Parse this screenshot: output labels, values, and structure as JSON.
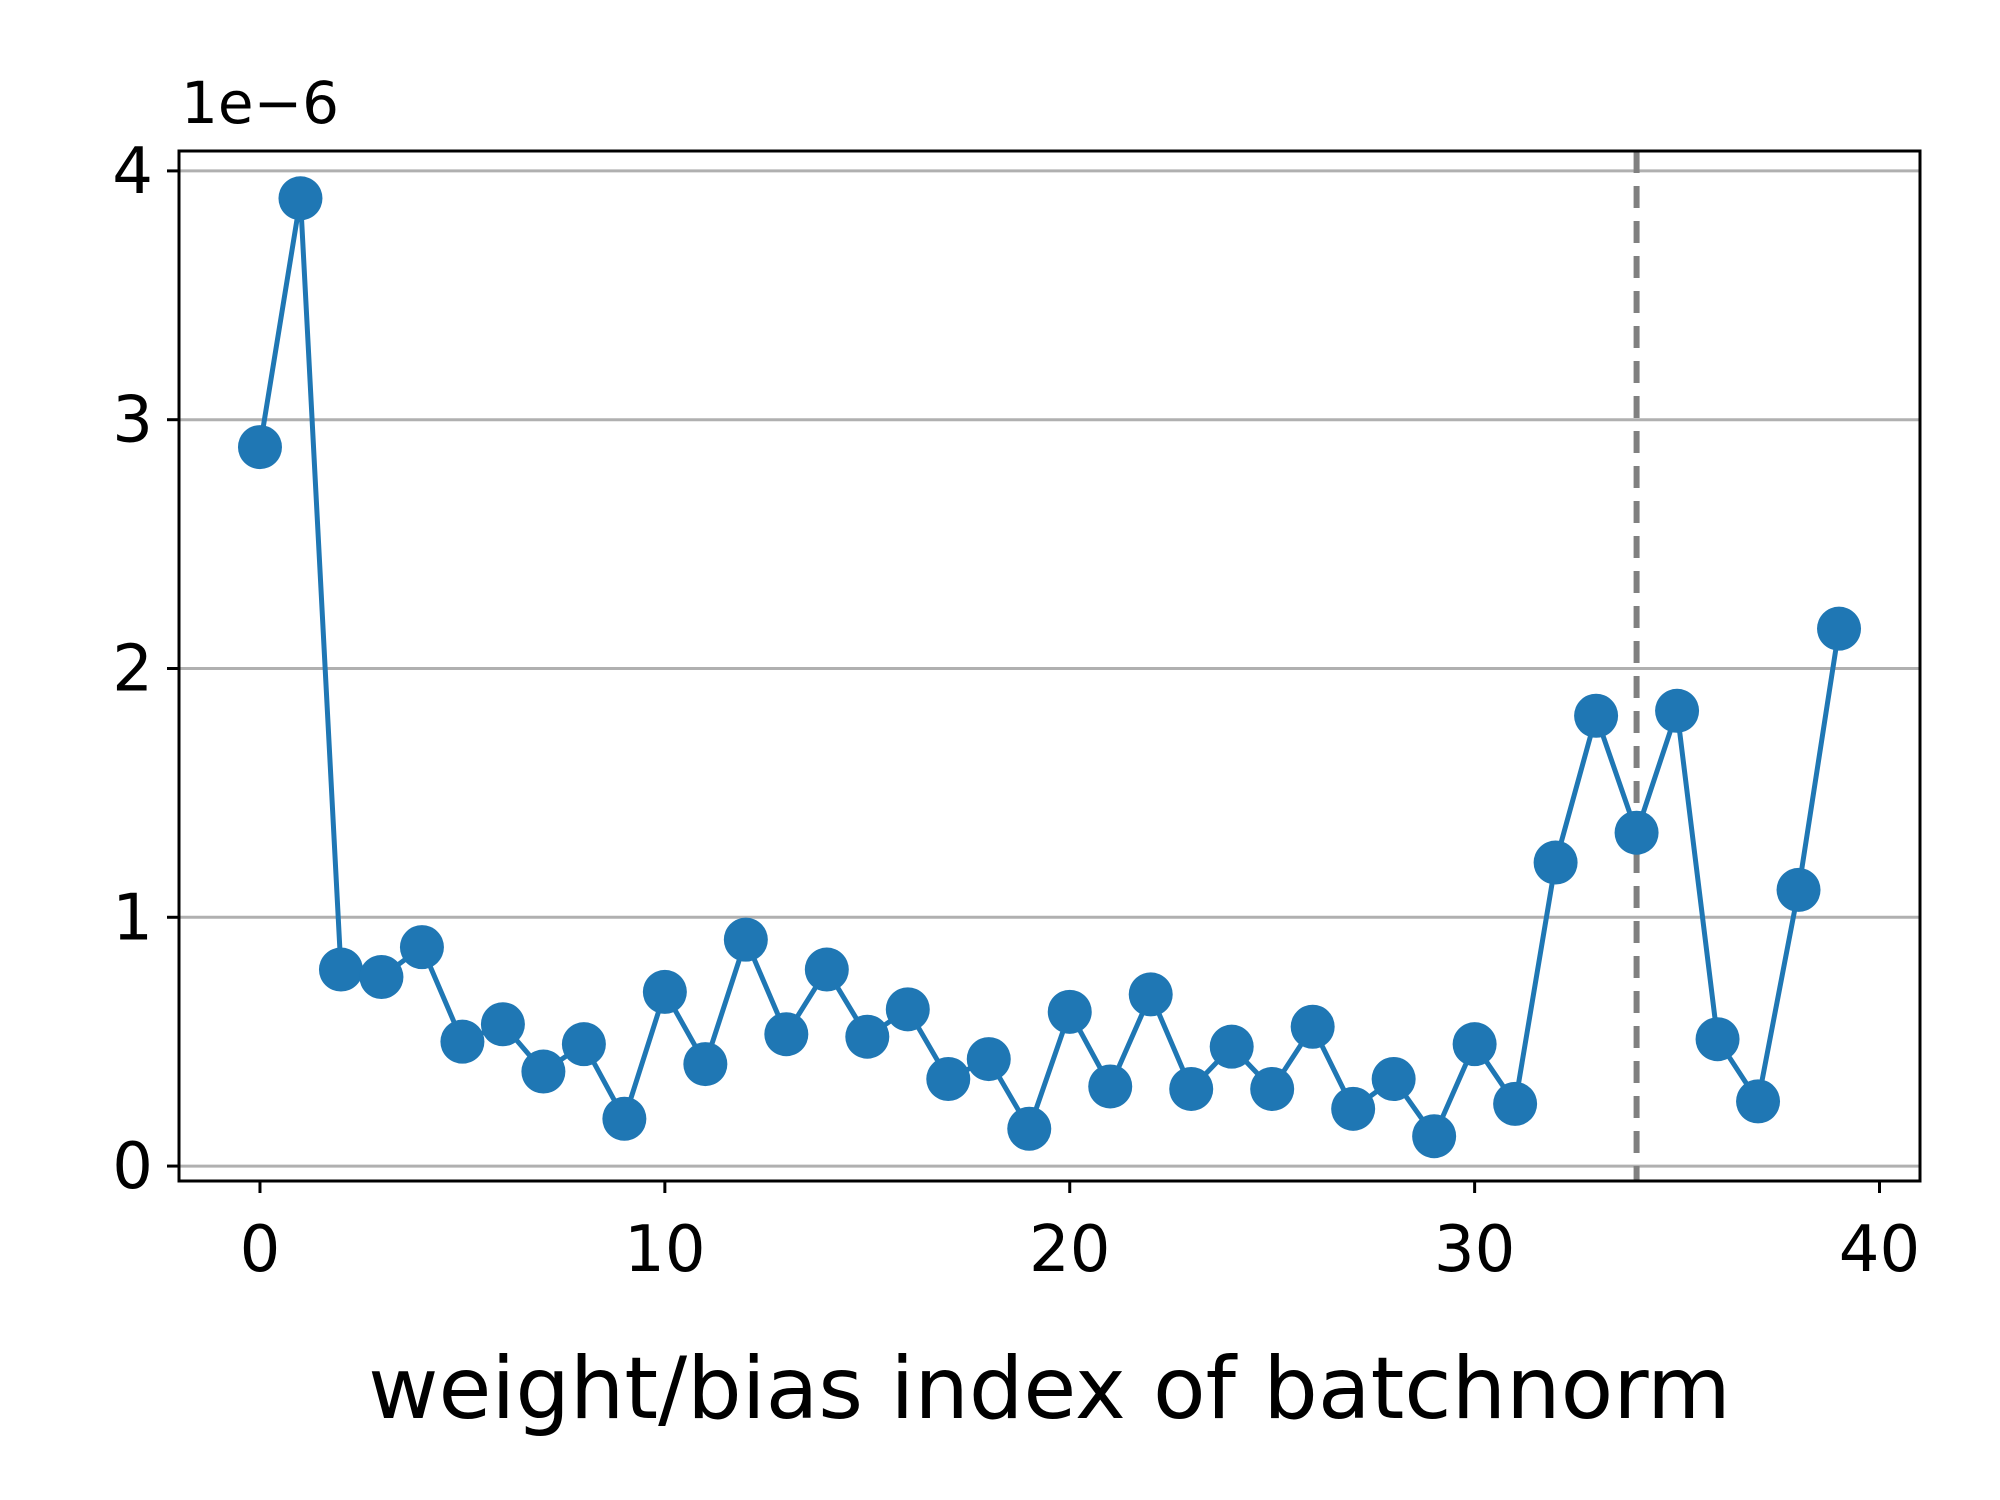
{
  "chart_data": {
    "type": "line",
    "title": "",
    "xlabel": "weight/bias index of batchnorm",
    "ylabel": "",
    "y_offset_label": "1e−6",
    "xlim": [
      -2,
      41
    ],
    "ylim": [
      -0.06,
      4.08
    ],
    "xticks": [
      0,
      10,
      20,
      30,
      40
    ],
    "xtick_labels": [
      "0",
      "10",
      "20",
      "30",
      "40"
    ],
    "yticks": [
      0,
      1,
      2,
      3,
      4
    ],
    "ytick_labels": [
      "0",
      "1",
      "2",
      "3",
      "4"
    ],
    "grid": "horizontal",
    "vline_x": 34,
    "colors": {
      "series": "#1f77b4",
      "grid": "#b0b0b0",
      "vline": "#808080"
    },
    "series": [
      {
        "x": [
          0,
          1,
          2,
          3,
          4,
          5,
          6,
          7,
          8,
          9,
          10,
          11,
          12,
          13,
          14,
          15,
          16,
          17,
          18,
          19,
          20,
          21,
          22,
          23,
          24,
          25,
          26,
          27,
          28,
          29,
          30,
          31,
          32,
          33,
          34,
          35,
          36,
          37,
          38,
          39
        ],
        "values": [
          2.89,
          3.89,
          0.79,
          0.76,
          0.88,
          0.5,
          0.57,
          0.38,
          0.49,
          0.19,
          0.7,
          0.41,
          0.91,
          0.53,
          0.79,
          0.52,
          0.63,
          0.35,
          0.43,
          0.15,
          0.62,
          0.32,
          0.69,
          0.31,
          0.48,
          0.31,
          0.56,
          0.23,
          0.35,
          0.12,
          0.49,
          0.25,
          1.22,
          1.81,
          1.34,
          1.83,
          0.51,
          0.26,
          1.11,
          2.16
        ]
      }
    ]
  }
}
